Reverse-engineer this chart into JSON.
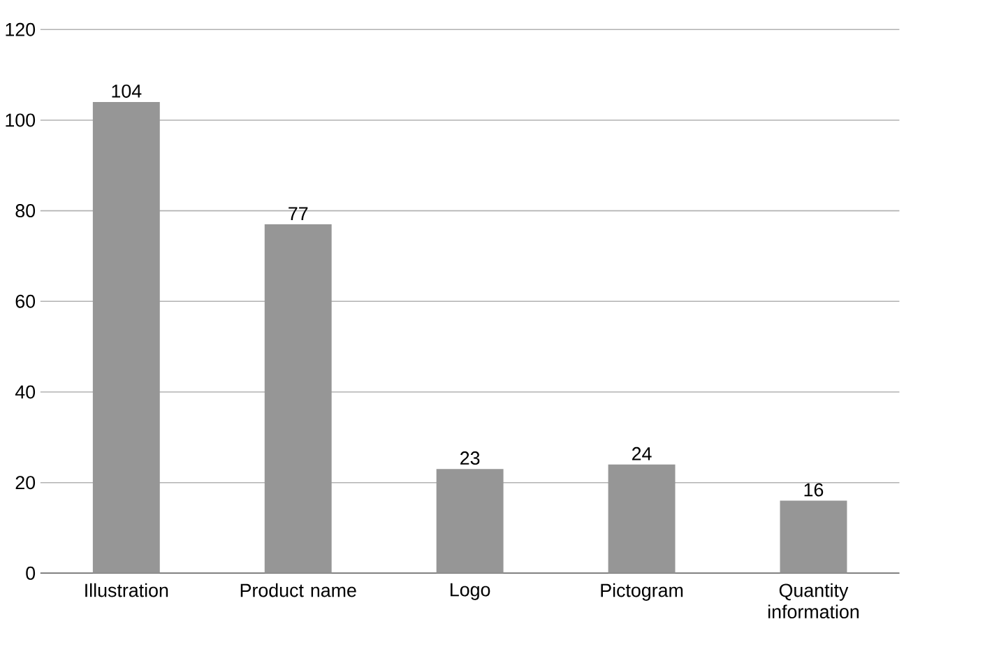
{
  "chart_data": {
    "type": "bar",
    "categories": [
      "Illustration",
      "Product name",
      "Logo",
      "Pictogram",
      "Quantity information"
    ],
    "values": [
      104,
      77,
      23,
      24,
      16
    ],
    "color": "#969696",
    "ylim": [
      0,
      120
    ],
    "yticks": [
      0,
      20,
      40,
      60,
      80,
      100,
      120
    ],
    "grid": "y",
    "data_labels": true
  }
}
